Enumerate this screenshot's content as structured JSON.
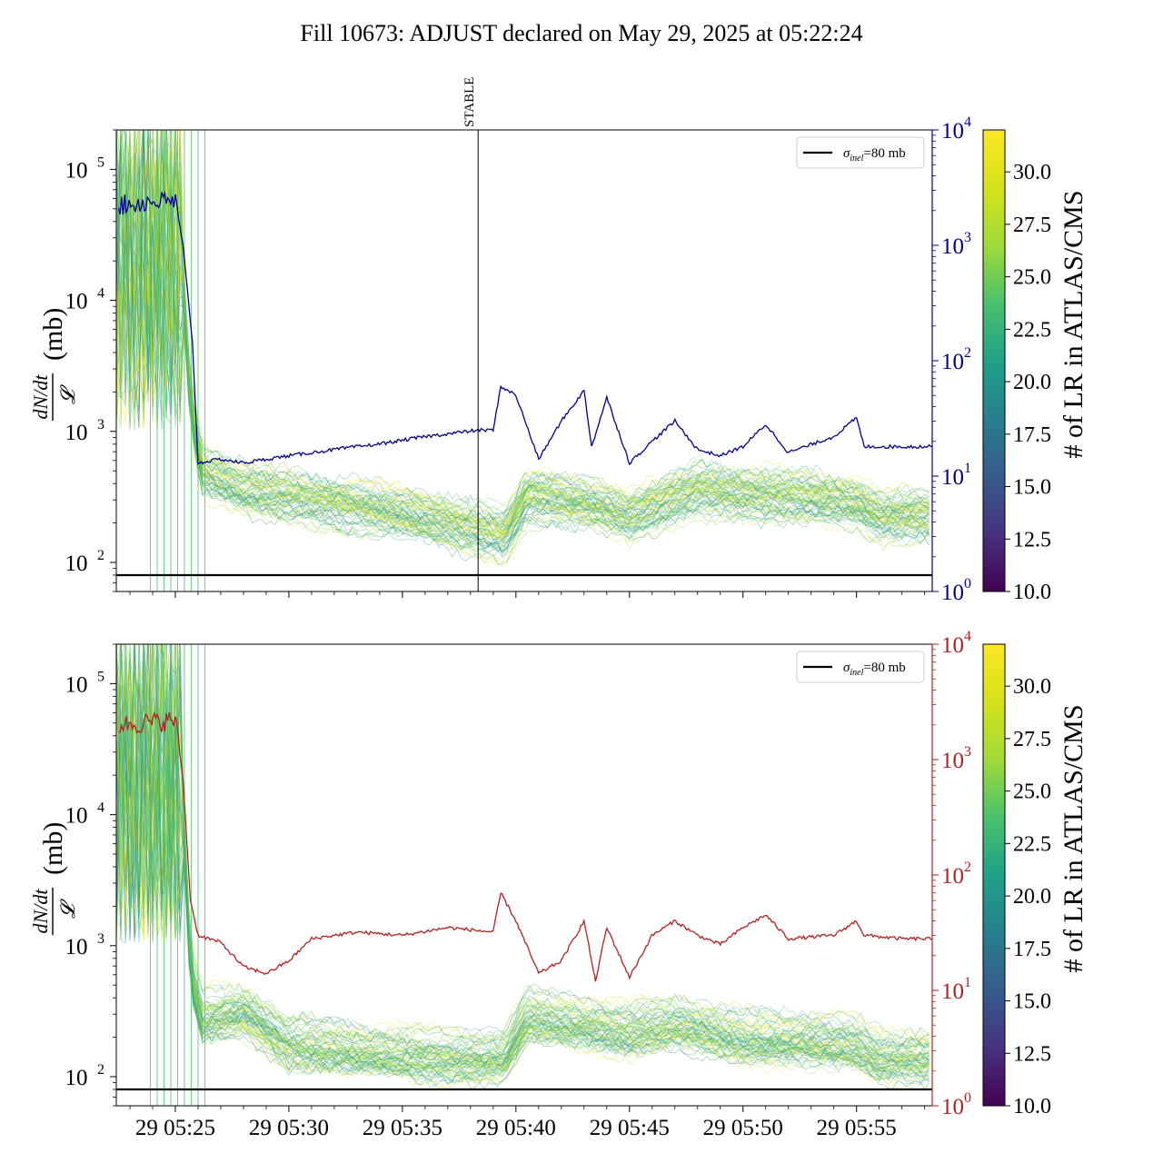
{
  "chart_data": [
    {
      "type": "line",
      "title": "Fill 10673: ADJUST declared on May 29, 2025 at 05:22:24",
      "panel": "top",
      "x_range": [
        "2025-05-29T05:22:24",
        "2025-05-29T05:58:20"
      ],
      "x_tick_labels": [
        "29 05:25",
        "29 05:30",
        "29 05:35",
        "29 05:40",
        "29 05:45",
        "29 05:50",
        "29 05:55"
      ],
      "x_ticks": [
        "05:25",
        "05:30",
        "05:35",
        "05:40",
        "05:45",
        "05:50",
        "05:55"
      ],
      "ylabel": "dN/dt / 𝓛 (mb)",
      "ylabel_parts": {
        "num": "dN/dt",
        "den": "𝓛",
        "unit": "(mb)"
      },
      "y_scale": "log",
      "ylim": [
        60,
        200000
      ],
      "y_tick_labels": [
        "10",
        "10",
        "10",
        "10"
      ],
      "y_tick_exponents": [
        "2",
        "3",
        "4",
        "5"
      ],
      "y2_scale": "log",
      "y2lim": [
        1,
        10000
      ],
      "y2_tick_labels": [
        "10",
        "10",
        "10",
        "10",
        "10"
      ],
      "y2_tick_exponents": [
        "0",
        "1",
        "2",
        "3",
        "4"
      ],
      "y2_color": "#00008b",
      "reference_line": {
        "value": 80,
        "label": "σinel=80 mb",
        "label_main": "σ",
        "label_sub": "inel",
        "label_rest": "=80 mb"
      },
      "legend_position": "upper right",
      "vertical_marker": {
        "time": "05:38:20",
        "label": "STABLE"
      },
      "colorbar": {
        "label": "# of LR in ATLAS/CMS",
        "range": [
          10.0,
          32.0
        ],
        "tick_labels": [
          "10.0",
          "12.5",
          "15.0",
          "17.5",
          "20.0",
          "22.5",
          "25.0",
          "27.5",
          "30.0"
        ],
        "colormap": "viridis"
      },
      "secondary_series_samples": [
        {
          "t": "05:22:30",
          "y": 2200
        },
        {
          "t": "05:24:00",
          "y": 2400
        },
        {
          "t": "05:25:00",
          "y": 2400
        },
        {
          "t": "05:25:20",
          "y": 1000
        },
        {
          "t": "05:25:45",
          "y": 150
        },
        {
          "t": "05:26:00",
          "y": 13
        },
        {
          "t": "05:27:00",
          "y": 14
        },
        {
          "t": "05:28:00",
          "y": 13
        },
        {
          "t": "05:29:00",
          "y": 14
        },
        {
          "t": "05:30:00",
          "y": 15
        },
        {
          "t": "05:32:00",
          "y": 17
        },
        {
          "t": "05:34:00",
          "y": 19
        },
        {
          "t": "05:36:00",
          "y": 22
        },
        {
          "t": "05:38:20",
          "y": 25
        },
        {
          "t": "05:39:00",
          "y": 25
        },
        {
          "t": "05:39:20",
          "y": 60
        },
        {
          "t": "05:40:00",
          "y": 50
        },
        {
          "t": "05:41:00",
          "y": 14
        },
        {
          "t": "05:42:00",
          "y": 30
        },
        {
          "t": "05:43:00",
          "y": 55
        },
        {
          "t": "05:43:20",
          "y": 18
        },
        {
          "t": "05:44:00",
          "y": 48
        },
        {
          "t": "05:45:00",
          "y": 13
        },
        {
          "t": "05:46:00",
          "y": 20
        },
        {
          "t": "05:47:00",
          "y": 30
        },
        {
          "t": "05:48:00",
          "y": 17
        },
        {
          "t": "05:49:00",
          "y": 15
        },
        {
          "t": "05:50:00",
          "y": 18
        },
        {
          "t": "05:51:00",
          "y": 28
        },
        {
          "t": "05:52:00",
          "y": 16
        },
        {
          "t": "05:54:00",
          "y": 22
        },
        {
          "t": "05:55:00",
          "y": 32
        },
        {
          "t": "05:55:20",
          "y": 18
        },
        {
          "t": "05:57:00",
          "y": 18
        },
        {
          "t": "05:58:20",
          "y": 18
        }
      ]
    },
    {
      "type": "line",
      "panel": "bottom",
      "x_range": [
        "2025-05-29T05:22:24",
        "2025-05-29T05:58:20"
      ],
      "x_tick_labels": [
        "29 05:25",
        "29 05:30",
        "29 05:35",
        "29 05:40",
        "29 05:45",
        "29 05:50",
        "29 05:55"
      ],
      "ylabel": "dN/dt / 𝓛 (mb)",
      "y_scale": "log",
      "ylim": [
        60,
        200000
      ],
      "y2_scale": "log",
      "y2lim": [
        1,
        10000
      ],
      "y2_color": "#b22222",
      "reference_line": {
        "value": 80,
        "label": "σinel=80 mb"
      },
      "legend_position": "upper right",
      "colorbar": {
        "label": "# of LR in ATLAS/CMS",
        "range": [
          10.0,
          32.0
        ],
        "tick_labels": [
          "10.0",
          "12.5",
          "15.0",
          "17.5",
          "20.0",
          "22.5",
          "25.0",
          "27.5",
          "30.0"
        ],
        "colormap": "viridis"
      },
      "secondary_series_samples": [
        {
          "t": "05:22:30",
          "y": 2000
        },
        {
          "t": "05:24:00",
          "y": 2100
        },
        {
          "t": "05:25:00",
          "y": 2200
        },
        {
          "t": "05:25:20",
          "y": 700
        },
        {
          "t": "05:25:40",
          "y": 60
        },
        {
          "t": "05:26:00",
          "y": 30
        },
        {
          "t": "05:27:00",
          "y": 26
        },
        {
          "t": "05:28:00",
          "y": 16
        },
        {
          "t": "05:29:00",
          "y": 14
        },
        {
          "t": "05:30:00",
          "y": 18
        },
        {
          "t": "05:31:00",
          "y": 28
        },
        {
          "t": "05:33:00",
          "y": 32
        },
        {
          "t": "05:35:00",
          "y": 30
        },
        {
          "t": "05:37:00",
          "y": 35
        },
        {
          "t": "05:39:00",
          "y": 32
        },
        {
          "t": "05:39:20",
          "y": 70
        },
        {
          "t": "05:40:00",
          "y": 40
        },
        {
          "t": "05:41:00",
          "y": 14
        },
        {
          "t": "05:42:00",
          "y": 18
        },
        {
          "t": "05:43:00",
          "y": 40
        },
        {
          "t": "05:43:30",
          "y": 12
        },
        {
          "t": "05:44:00",
          "y": 35
        },
        {
          "t": "05:45:00",
          "y": 13
        },
        {
          "t": "05:46:00",
          "y": 30
        },
        {
          "t": "05:47:00",
          "y": 40
        },
        {
          "t": "05:48:00",
          "y": 30
        },
        {
          "t": "05:49:00",
          "y": 25
        },
        {
          "t": "05:50:00",
          "y": 35
        },
        {
          "t": "05:51:00",
          "y": 45
        },
        {
          "t": "05:52:00",
          "y": 28
        },
        {
          "t": "05:54:00",
          "y": 30
        },
        {
          "t": "05:55:00",
          "y": 40
        },
        {
          "t": "05:55:20",
          "y": 30
        },
        {
          "t": "05:57:00",
          "y": 28
        },
        {
          "t": "05:58:20",
          "y": 28
        }
      ]
    }
  ]
}
